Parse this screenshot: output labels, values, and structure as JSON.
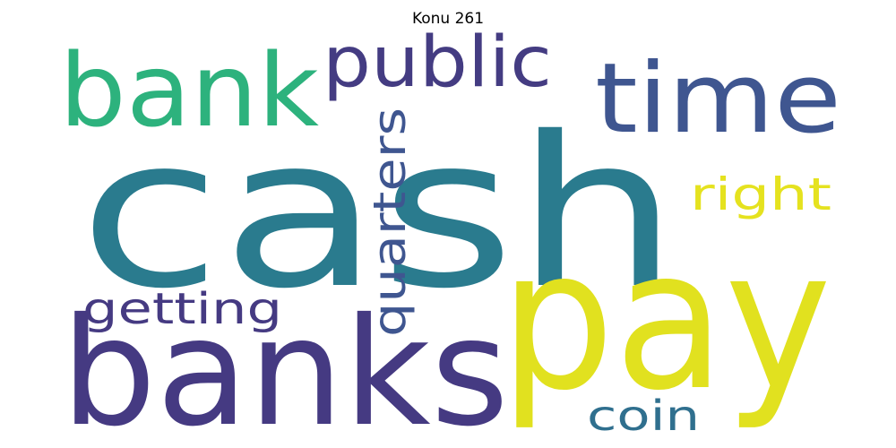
{
  "title": "Konu 261",
  "words": [
    {
      "id": "cash",
      "text": "cash",
      "color": "#2a7b8e"
    },
    {
      "id": "banks",
      "text": "banks",
      "color": "#453a82"
    },
    {
      "id": "pay",
      "text": "pay",
      "color": "#e1e11f"
    },
    {
      "id": "bank",
      "text": "bank",
      "color": "#2db27d"
    },
    {
      "id": "time",
      "text": "time",
      "color": "#3f5690"
    },
    {
      "id": "public",
      "text": "public",
      "color": "#443c82"
    },
    {
      "id": "quarters",
      "text": "quarters",
      "color": "#3f5690"
    },
    {
      "id": "right",
      "text": "right",
      "color": "#e5e21f"
    },
    {
      "id": "getting",
      "text": "getting",
      "color": "#453a82"
    },
    {
      "id": "coin",
      "text": "coin",
      "color": "#2f6f8e"
    }
  ]
}
